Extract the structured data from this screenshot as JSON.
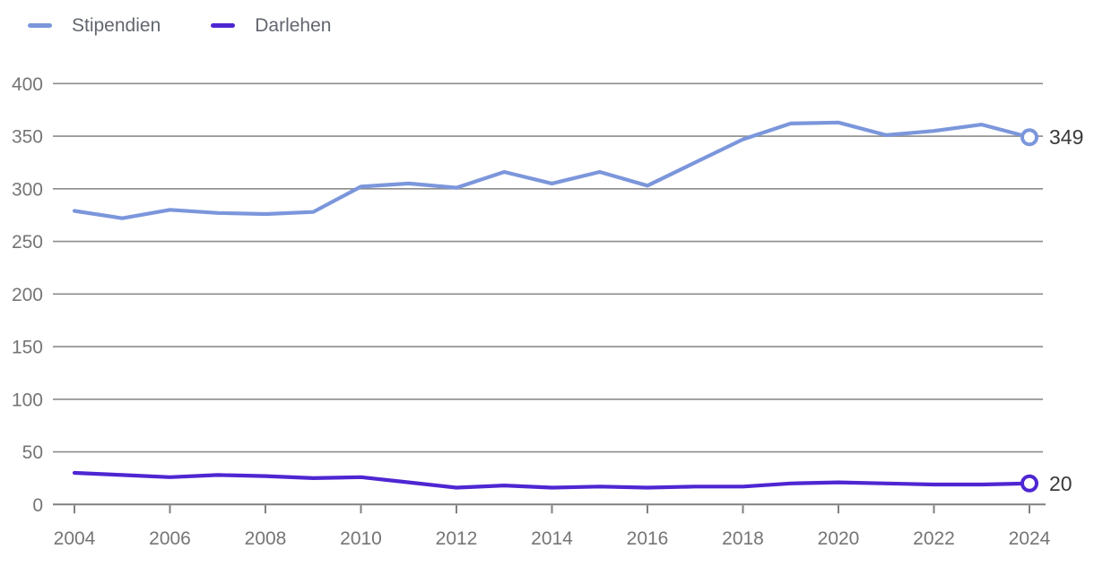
{
  "chart_data": {
    "type": "line",
    "title": "",
    "xlabel": "",
    "ylabel": "",
    "x": [
      2004,
      2005,
      2006,
      2007,
      2008,
      2009,
      2010,
      2011,
      2012,
      2013,
      2014,
      2015,
      2016,
      2017,
      2018,
      2019,
      2020,
      2021,
      2022,
      2023,
      2024
    ],
    "series": [
      {
        "name": "Stipendien",
        "color": "#7b96db",
        "values": [
          279,
          272,
          280,
          277,
          276,
          278,
          302,
          305,
          301,
          316,
          305,
          316,
          303,
          325,
          347,
          362,
          363,
          351,
          355,
          361,
          349
        ],
        "end_value_label": "349"
      },
      {
        "name": "Darlehen",
        "color": "#4e26d2",
        "values": [
          30,
          28,
          26,
          28,
          27,
          25,
          26,
          21,
          16,
          18,
          16,
          17,
          16,
          17,
          17,
          20,
          21,
          20,
          19,
          19,
          20
        ],
        "end_value_label": "20"
      }
    ],
    "ylim": [
      0,
      400
    ],
    "yticks": [
      0,
      50,
      100,
      150,
      200,
      250,
      300,
      350,
      400
    ],
    "xticks": [
      2004,
      2006,
      2008,
      2010,
      2012,
      2014,
      2016,
      2018,
      2020,
      2022,
      2024
    ],
    "grid": true,
    "legend_position": "top-left"
  },
  "styles": {
    "background": "#ffffff",
    "grid_color": "#8c8c8c",
    "axis_color": "#808080",
    "tick_label_color": "#757575",
    "legend_text_color": "#62666e",
    "end_label_color": "#3a3a3a",
    "marker_fill": "#ffffff"
  }
}
